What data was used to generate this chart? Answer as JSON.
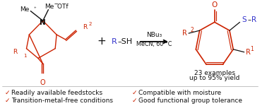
{
  "bg_color": "#ffffff",
  "red": "#cc2200",
  "blue": "#3333cc",
  "black": "#111111",
  "reagents_line1": "NBu₃",
  "reagents_line2": "MeCN, 60 °C",
  "product_info_line1": "23 examples",
  "product_info_line2": "up to 95% yield",
  "check_mark": "✓",
  "bullet_left_1": "Readily available feedstocks",
  "bullet_left_2": "Transition-metal-free conditions",
  "bullet_right_1": "Compatible with moisture",
  "bullet_right_2": "Good functional group tolerance",
  "small_fontsize": 6.5,
  "bullet_fontsize": 6.5
}
